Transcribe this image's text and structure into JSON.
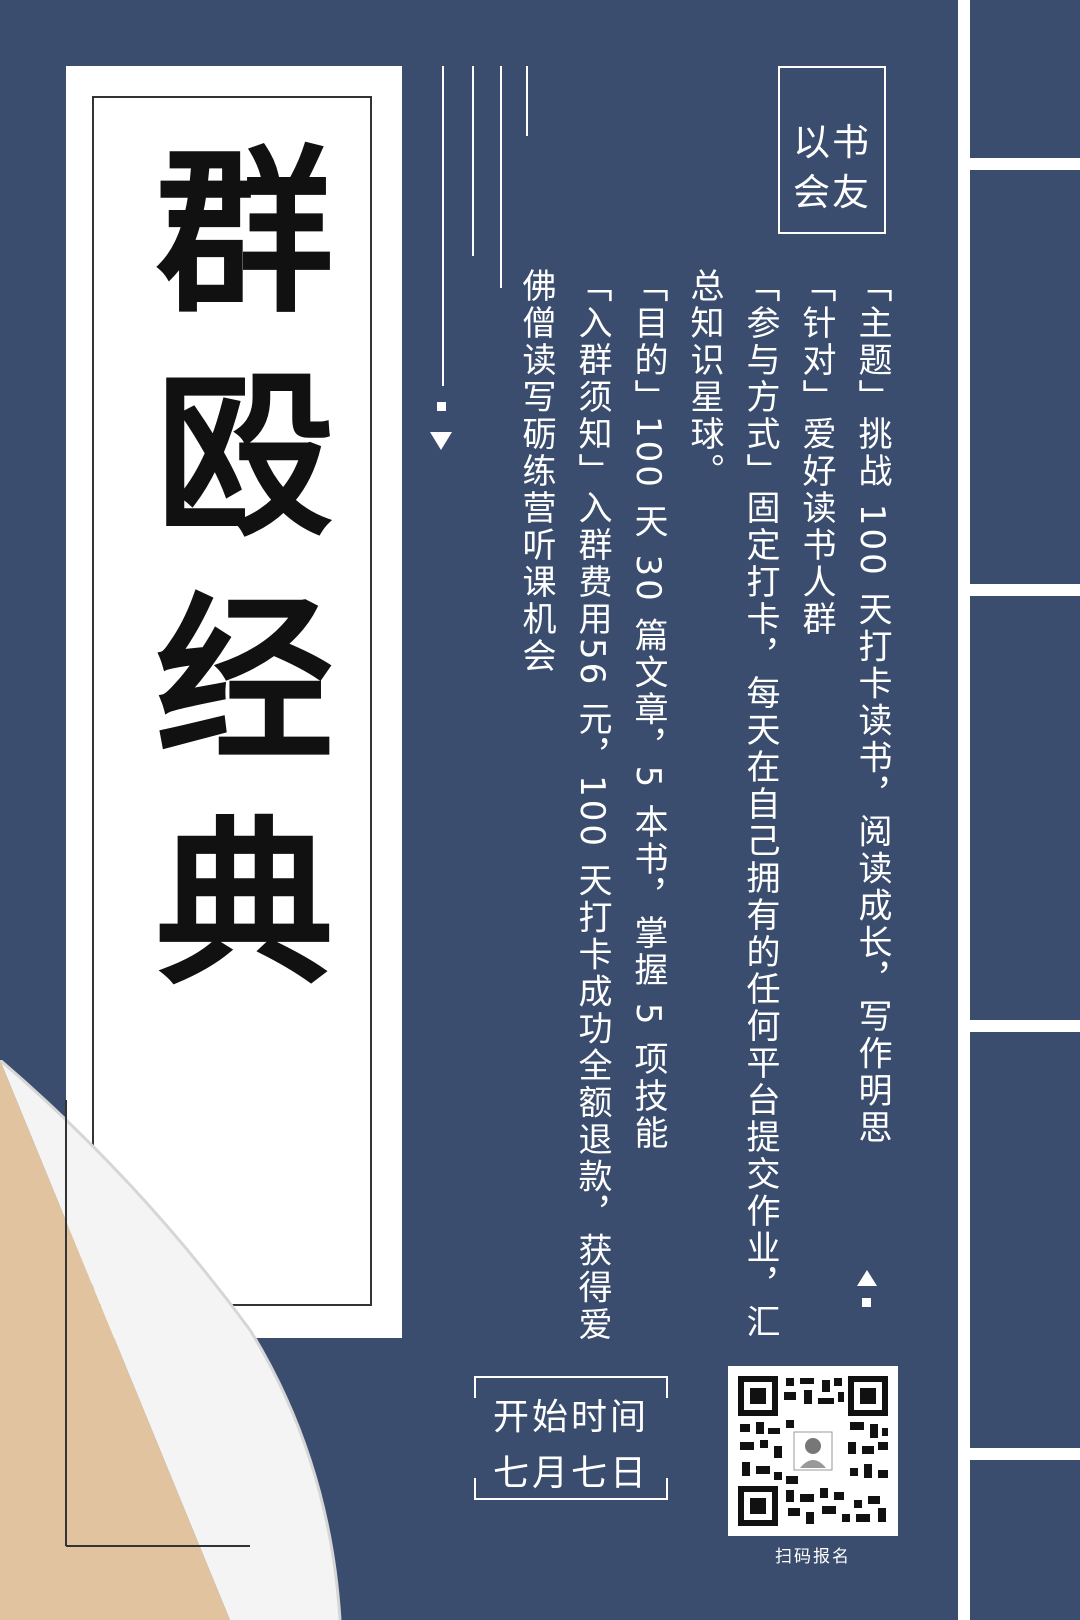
{
  "title": {
    "text": "群殴经典"
  },
  "slogan": {
    "line1": "以书",
    "line2": "会友"
  },
  "details": {
    "theme": "「主题」挑战 100 天打卡读书，阅读成长，写作明思",
    "target": "「针对」爱好读书人群",
    "method": "「参与方式」固定打卡，每天在自己拥有的任何平台提交作业，汇总知识星球。",
    "goal": "「目的」100 天 30 篇文章，5 本书，掌握 5 项技能",
    "notice": "「入群须知」入群费用56 元，100 天打卡成功全额退款，获得爱佛僧读写砺练营听课机会"
  },
  "schedule": {
    "label": "开始时间",
    "date": "七月七日"
  },
  "qr": {
    "caption": "扫码报名"
  },
  "colors": {
    "background": "#3b4d6e",
    "paper": "#ffffff",
    "curl_back": "#e2c3a0"
  }
}
